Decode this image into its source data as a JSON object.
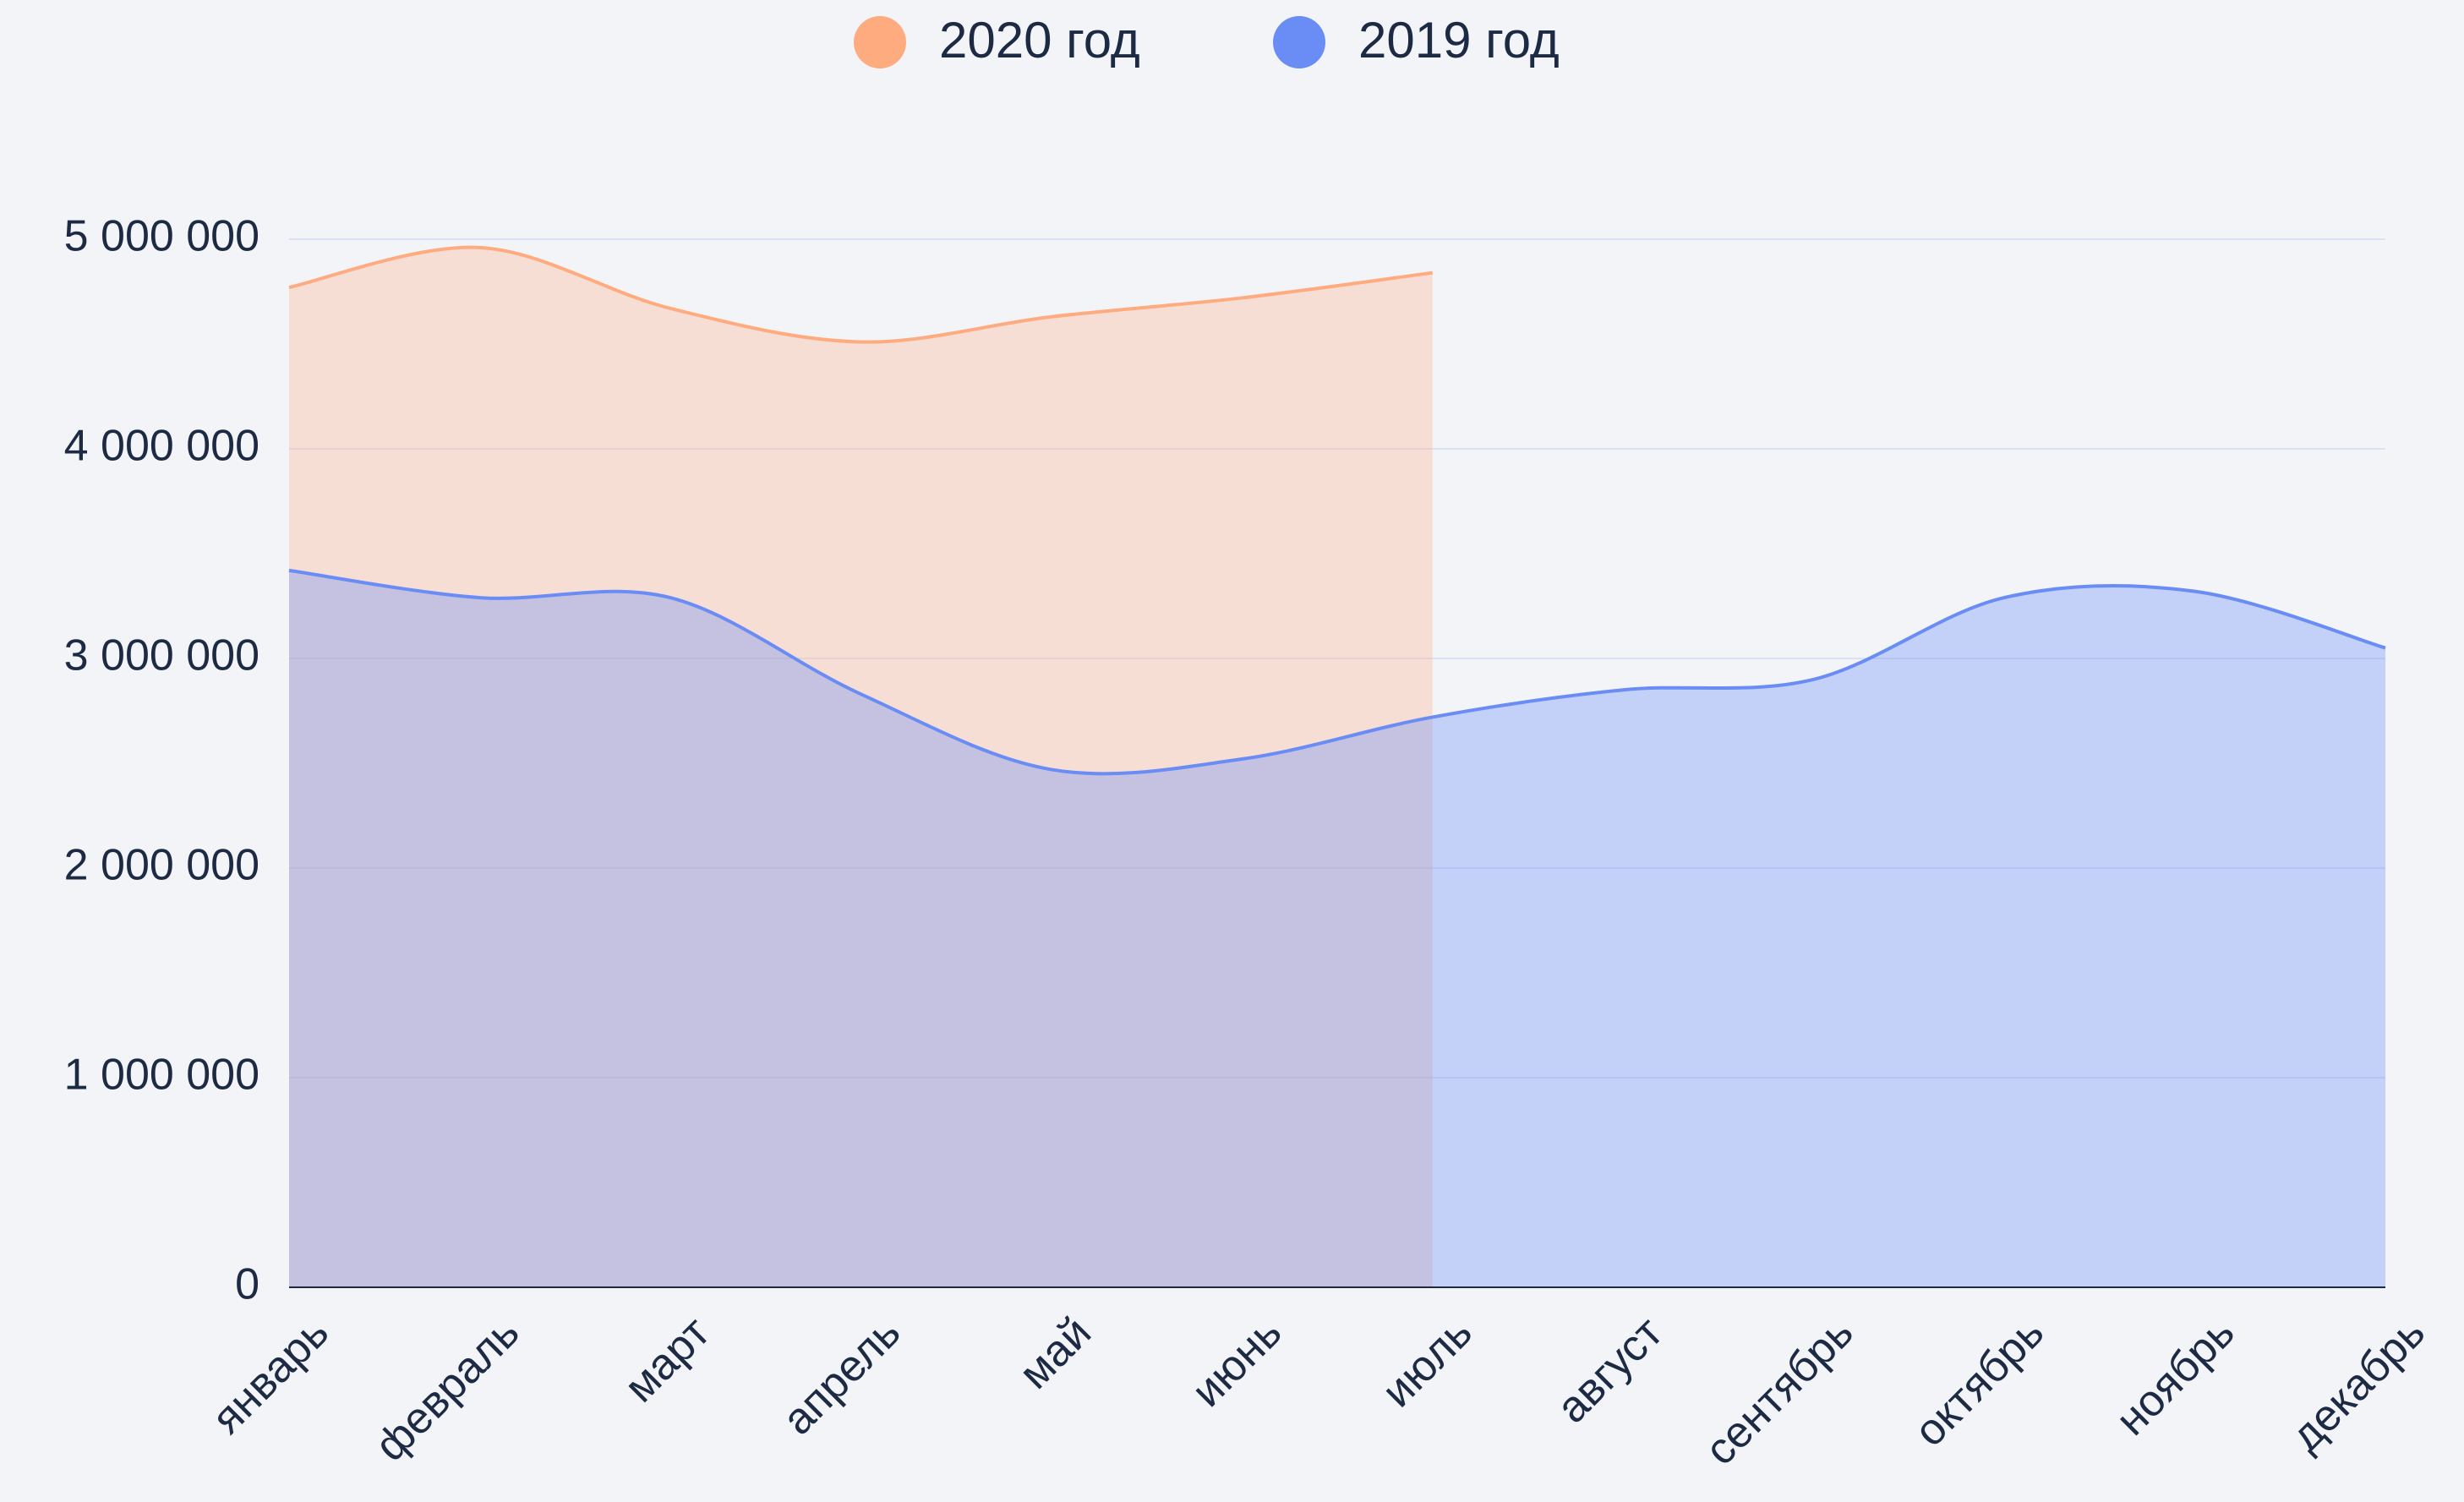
{
  "chart_data": {
    "type": "area",
    "categories": [
      "январь",
      "февраль",
      "март",
      "апрель",
      "май",
      "июнь",
      "июль",
      "август",
      "сентябрь",
      "октябрь",
      "ноябрь",
      "декабрь"
    ],
    "series": [
      {
        "name": "2020 год",
        "color": "#ffab80",
        "values": [
          4770000,
          4960000,
          4670000,
          4510000,
          4630000,
          4720000,
          4840000,
          null,
          null,
          null,
          null,
          null
        ]
      },
      {
        "name": "2019 год",
        "color": "#6a8cf5",
        "values": [
          3420000,
          3290000,
          3290000,
          2830000,
          2470000,
          2520000,
          2720000,
          2850000,
          2900000,
          3290000,
          3320000,
          3050000
        ]
      }
    ],
    "ylim": [
      0,
      5000000
    ],
    "yticks": [
      0,
      {
        "value": 1000000,
        "label": "1 000 000"
      },
      {
        "value": 2000000,
        "label": "2 000 000"
      },
      {
        "value": 3000000,
        "label": "3 000 000"
      },
      {
        "value": 4000000,
        "label": "4 000 000"
      },
      {
        "value": 5000000,
        "label": "5 000 000"
      }
    ],
    "grid": true,
    "legend": "top"
  }
}
